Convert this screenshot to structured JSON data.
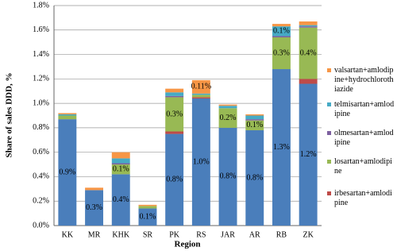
{
  "chart_data": {
    "type": "bar",
    "stacked": true,
    "x_label": "Region",
    "y_label": "Share of sales DDD, %",
    "categories": [
      "KK",
      "MR",
      "KHK",
      "SR",
      "PK",
      "RS",
      "JAR",
      "AR",
      "RB",
      "ZK"
    ],
    "ylim": [
      0,
      1.8
    ],
    "yticks": [
      {
        "value": 0,
        "label": "0.0%"
      },
      {
        "value": 0.2,
        "label": "0.2%"
      },
      {
        "value": 0.4,
        "label": "0.4%"
      },
      {
        "value": 0.6,
        "label": "0.6%"
      },
      {
        "value": 0.8,
        "label": "0.8%"
      },
      {
        "value": 1.0,
        "label": "1.0%"
      },
      {
        "value": 1.2,
        "label": "1.2%"
      },
      {
        "value": 1.4,
        "label": "1.4%"
      },
      {
        "value": 1.6,
        "label": "1.6%"
      },
      {
        "value": 1.8,
        "label": "1.8%"
      }
    ],
    "grid": true,
    "legend": "right",
    "series": [
      {
        "color": "#4a7ebb",
        "values": [
          0.87,
          0.29,
          0.42,
          0.14,
          0.75,
          1.04,
          0.8,
          0.78,
          1.28,
          1.16
        ],
        "value_labels": [
          "0.9%",
          "0.3%",
          "0.4%",
          "0.1%",
          "0.8%",
          "1.0%",
          "0.8%",
          "0.8%",
          "1.3%",
          "1.2%"
        ]
      },
      {
        "name": "irbesartan+amlodipine",
        "color": "#be4b48",
        "values": [
          0,
          0,
          0,
          0,
          0.02,
          0.01,
          0,
          0,
          0,
          0.04
        ]
      },
      {
        "name": "losartan+amlodipine",
        "color": "#98b954",
        "values": [
          0.03,
          0,
          0.08,
          0.02,
          0.28,
          0.02,
          0.16,
          0.08,
          0.26,
          0.42
        ],
        "value_labels": [
          null,
          null,
          "0.1%",
          null,
          "0.3%",
          null,
          "0.2%",
          "0.1%",
          "0.3%",
          "0.4%"
        ]
      },
      {
        "name": "olmesartan+amlodipine",
        "color": "#7d60a0",
        "values": [
          0,
          0,
          0.01,
          0,
          0.01,
          0,
          0,
          0.01,
          0.01,
          0.01
        ]
      },
      {
        "name": "telmisartan+amlodipine",
        "color": "#46aac5",
        "values": [
          0.01,
          0,
          0.04,
          0,
          0.03,
          0.01,
          0.02,
          0.03,
          0.08,
          0.01
        ],
        "value_labels": [
          null,
          null,
          null,
          null,
          null,
          null,
          null,
          null,
          "0.1%",
          null
        ]
      },
      {
        "name": "valsartan+amlodipine+hydrochlorothiazide",
        "color": "#f79646",
        "values": [
          0.01,
          0.02,
          0.05,
          0.01,
          0.03,
          0.11,
          0.01,
          0.01,
          0.02,
          0.03
        ],
        "value_labels": [
          null,
          null,
          null,
          null,
          null,
          "0.11%",
          null,
          null,
          null,
          null
        ]
      }
    ]
  }
}
